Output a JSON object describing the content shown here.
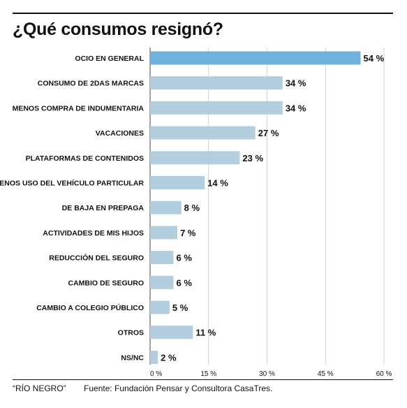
{
  "chart_data": {
    "type": "bar",
    "orientation": "horizontal",
    "title": "¿Qué consumos resignó?",
    "categories": [
      "OCIO EN GENERAL",
      "CONSUMO DE 2DAS MARCAS",
      "MENOS COMPRA DE INDUMENTARIA",
      "VACACIONES",
      "PLATAFORMAS DE CONTENIDOS",
      "MENOS USO DEL VEHÍCULO PARTICULAR",
      "DE BAJA EN PREPAGA",
      "ACTIVIDADES DE MIS HIJOS",
      "REDUCCIÓN DEL SEGURO",
      "CAMBIO DE SEGURO",
      "CAMBIO A COLEGIO PÚBLICO",
      "OTROS",
      "NS/NC"
    ],
    "values": [
      54,
      34,
      34,
      27,
      23,
      14,
      8,
      7,
      6,
      6,
      5,
      11,
      2
    ],
    "value_labels": [
      "54 %",
      "34 %",
      "34 %",
      "27 %",
      "23 %",
      "14 %",
      "8 %",
      "7 %",
      "6 %",
      "6 %",
      "5 %",
      "11 %",
      "2 %"
    ],
    "xlim": [
      0,
      60
    ],
    "xticks": [
      0,
      15,
      30,
      45,
      60
    ],
    "xtick_labels": [
      "0 %",
      "15 %",
      "30 %",
      "45 %",
      "60 %"
    ],
    "grid": "vertical",
    "colors": {
      "highlight": "#6fb3dd",
      "bar": "#b3cfdf",
      "grid": "#c9c9c9",
      "text": "#111111"
    }
  },
  "footer": {
    "credit": "“RÍO NEGRO”",
    "source": "Fuente: Fundación Pensar y Consultora CasaTres."
  }
}
